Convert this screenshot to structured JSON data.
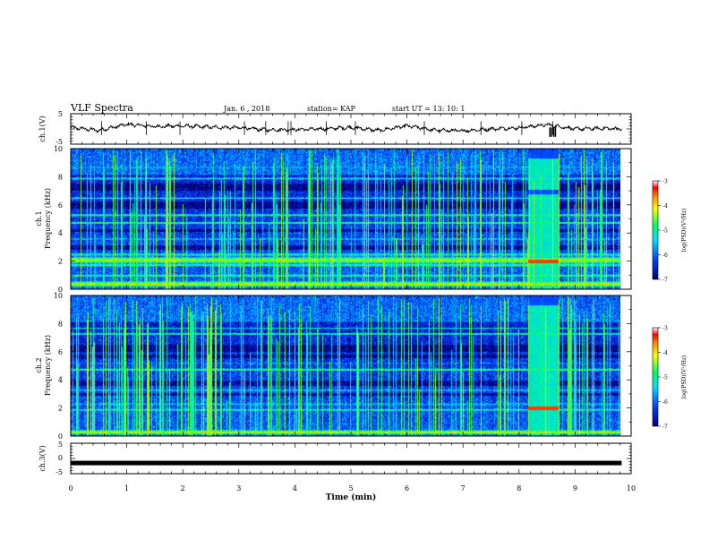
{
  "header": {
    "title": "VLF Spectra",
    "date": "Jan. 6 , 2018",
    "station": "station= KAP",
    "start": "start UT = 13: 10: 1"
  },
  "chart_data": [
    {
      "type": "line",
      "id": "ch1-waveform",
      "ylabel": "ch.1(V)",
      "ylim": [
        -5,
        5
      ],
      "yticks": [
        "5",
        "-5"
      ],
      "xlim": [
        0,
        10
      ],
      "description_series": [
        {
          "x": 0,
          "y": 0.5
        },
        {
          "x": 0.5,
          "y": -0.5
        },
        {
          "x": 1.0,
          "y": 1.5
        },
        {
          "x": 1.5,
          "y": 0.8
        },
        {
          "x": 2.0,
          "y": 1.0
        },
        {
          "x": 2.5,
          "y": 0.6
        },
        {
          "x": 3.0,
          "y": 0.4
        },
        {
          "x": 3.5,
          "y": -0.3
        },
        {
          "x": 4.0,
          "y": -0.2
        },
        {
          "x": 4.5,
          "y": 0.0
        },
        {
          "x": 5.0,
          "y": 0.5
        },
        {
          "x": 5.5,
          "y": -0.5
        },
        {
          "x": 6.0,
          "y": 1.0
        },
        {
          "x": 6.5,
          "y": -0.4
        },
        {
          "x": 7.0,
          "y": -0.6
        },
        {
          "x": 7.5,
          "y": 0.0
        },
        {
          "x": 8.0,
          "y": 0.4
        },
        {
          "x": 8.5,
          "y": 1.4
        },
        {
          "x": 9.0,
          "y": 0.0
        },
        {
          "x": 9.5,
          "y": 0.2
        },
        {
          "x": 9.83,
          "y": 0.0
        }
      ]
    },
    {
      "type": "heatmap",
      "id": "ch1-spectrogram",
      "ylabel_line1": "ch.1",
      "ylabel_line2": "Frequency (kHz)",
      "xlim": [
        0,
        10
      ],
      "ylim": [
        0,
        10
      ],
      "yticks": [
        "0",
        "2",
        "4",
        "6",
        "8",
        "10"
      ],
      "data_end_min": 9.83,
      "burst_start_min": 8.15,
      "burst_end_min": 8.7,
      "colorbar": {
        "label": "log(PSD)(V²/Hz)",
        "ticks": [
          "-3",
          "-4",
          "-5",
          "-6",
          "-7"
        ],
        "range": [
          -7,
          -3
        ]
      }
    },
    {
      "type": "heatmap",
      "id": "ch2-spectrogram",
      "ylabel_line1": "ch.2",
      "ylabel_line2": "Frequency (kHz)",
      "xlim": [
        0,
        10
      ],
      "ylim": [
        0,
        10
      ],
      "yticks": [
        "0",
        "2",
        "4",
        "6",
        "8",
        "10"
      ],
      "data_end_min": 9.83,
      "burst_start_min": 8.15,
      "burst_end_min": 8.7,
      "colorbar": {
        "label": "log(PSD)(V²/Hz)",
        "ticks": [
          "-3",
          "-4",
          "-5",
          "-6",
          "-7"
        ],
        "range": [
          -7,
          -3
        ]
      }
    },
    {
      "type": "line",
      "id": "ch3-waveform",
      "ylabel": "ch.3(V)",
      "ylim": [
        -5,
        5
      ],
      "yticks": [
        "5",
        "0",
        "-5"
      ],
      "xlim": [
        0,
        10
      ],
      "constant_value": -1.5,
      "data_end_min": 9.83
    }
  ],
  "xaxis": {
    "label": "Time (min)",
    "ticks": [
      "0",
      "1",
      "2",
      "3",
      "4",
      "5",
      "6",
      "7",
      "8",
      "9",
      "10"
    ]
  },
  "colors": {
    "background_low": "#000a50",
    "mid": "#00c8ff",
    "high": "#ffe000",
    "peak": "#ff0000"
  }
}
